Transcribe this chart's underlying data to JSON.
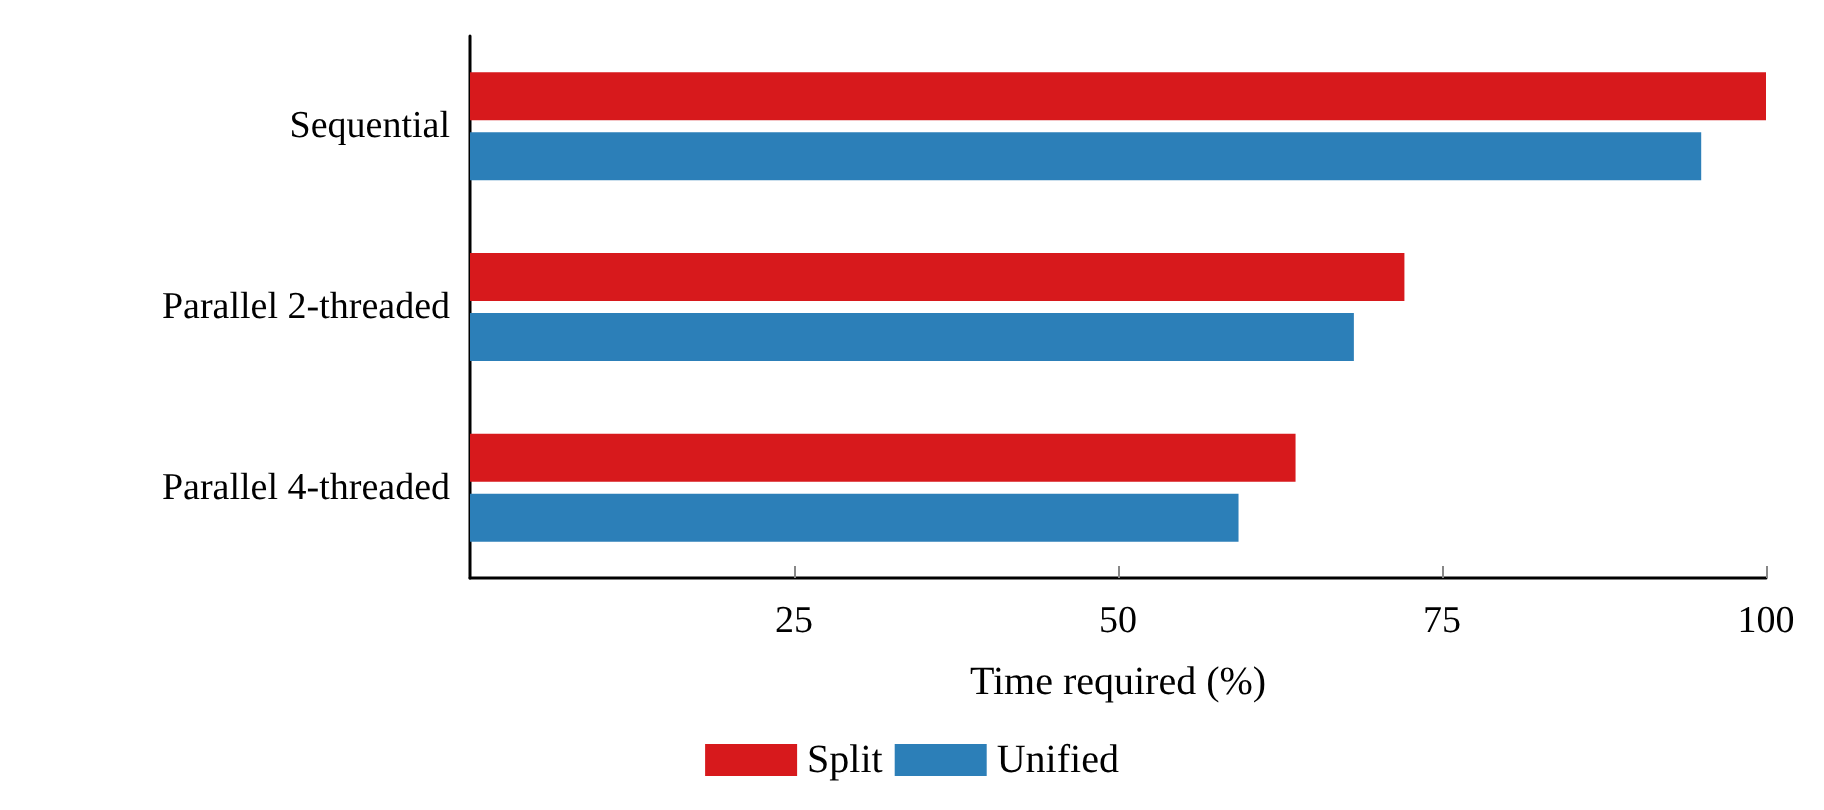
{
  "chart_data": {
    "type": "bar",
    "orientation": "horizontal",
    "xlabel": "Time required (%)",
    "categories": [
      "Sequential",
      "Parallel 2-threaded",
      "Parallel 4-threaded"
    ],
    "series": [
      {
        "name": "Split",
        "color": "#d7191c",
        "values": [
          100,
          72.1,
          63.7
        ]
      },
      {
        "name": "Unified",
        "color": "#2c7fb8",
        "values": [
          95.0,
          68.2,
          59.3
        ]
      }
    ],
    "xlim": [
      0,
      100
    ],
    "xticks": [
      25,
      50,
      75,
      100
    ],
    "grid": false,
    "legend": "bottom"
  }
}
